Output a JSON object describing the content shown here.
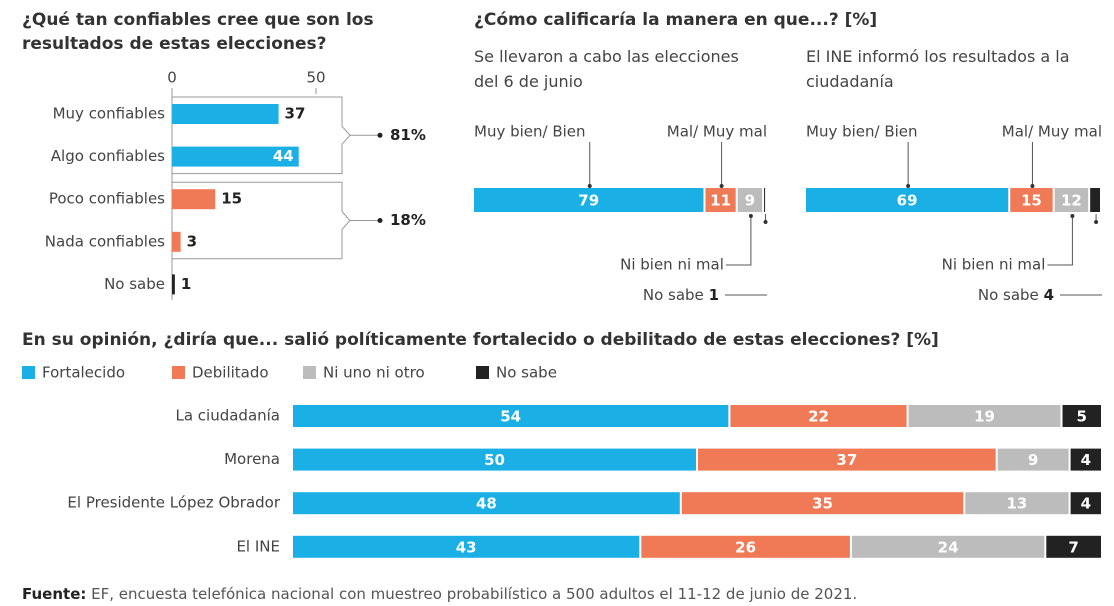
{
  "chart_data": [
    {
      "type": "bar",
      "orientation": "horizontal",
      "title": "¿Qué tan confiables cree que son los resultados de estas elecciones?",
      "categories": [
        "Muy confiables",
        "Algo confiables",
        "Poco confiables",
        "Nada confiables",
        "No sabe"
      ],
      "values": [
        37,
        44,
        15,
        3,
        1
      ],
      "colors": [
        "#1ab0e6",
        "#1ab0e6",
        "#f07a55",
        "#f07a55",
        "#222222"
      ],
      "xlim": [
        0,
        50
      ],
      "xticks": [
        0,
        50
      ],
      "brackets": [
        {
          "value": 81,
          "value_label": "81%"
        },
        {
          "value": 18,
          "value_label": "18%"
        }
      ]
    },
    {
      "type": "stacked_bar",
      "orientation": "horizontal",
      "title": "¿Cómo calificaría la manera en que...? [%]",
      "subtitle": "Se llevaron a cabo las elecciones del 6 de junio",
      "categories": [
        "Muy bien/ Bien",
        "Mal/ Muy mal",
        "Ni bien ni mal",
        "No sabe"
      ],
      "values": [
        79,
        11,
        9,
        1
      ],
      "colors": [
        "#1ab0e6",
        "#f07a55",
        "#bcbcbc",
        "#222222"
      ],
      "xlim": [
        0,
        100
      ]
    },
    {
      "type": "stacked_bar",
      "orientation": "horizontal",
      "subtitle": "El INE informó los resultados a la ciudadanía",
      "categories": [
        "Muy bien/ Bien",
        "Mal/ Muy mal",
        "Ni bien ni mal",
        "No sabe"
      ],
      "values": [
        69,
        15,
        12,
        4
      ],
      "colors": [
        "#1ab0e6",
        "#f07a55",
        "#bcbcbc",
        "#222222"
      ],
      "xlim": [
        0,
        100
      ]
    },
    {
      "type": "stacked_bar",
      "orientation": "horizontal",
      "title": "En su opinión, ¿diría que... salió políticamente fortalecido o debilitado de estas elecciones? [%]",
      "categories": [
        "La ciudadanía",
        "Morena",
        "El Presidente López Obrador",
        "El INE"
      ],
      "series": [
        {
          "name": "Fortalecido",
          "color": "#1ab0e6",
          "values": [
            54,
            50,
            48,
            43
          ]
        },
        {
          "name": "Debilitado",
          "color": "#f07a55",
          "values": [
            22,
            37,
            35,
            26
          ]
        },
        {
          "name": "Ni uno ni otro",
          "color": "#bcbcbc",
          "values": [
            19,
            9,
            13,
            24
          ]
        },
        {
          "name": "No sabe",
          "color": "#222222",
          "values": [
            5,
            4,
            4,
            7
          ]
        }
      ],
      "xlim": [
        0,
        100
      ],
      "legend": "top-left"
    }
  ],
  "source": {
    "label": "Fuente:",
    "text": "EF, encuesta telefónica nacional con muestreo probabilístico a 500 adultos el 11-12 de junio de 2021."
  }
}
